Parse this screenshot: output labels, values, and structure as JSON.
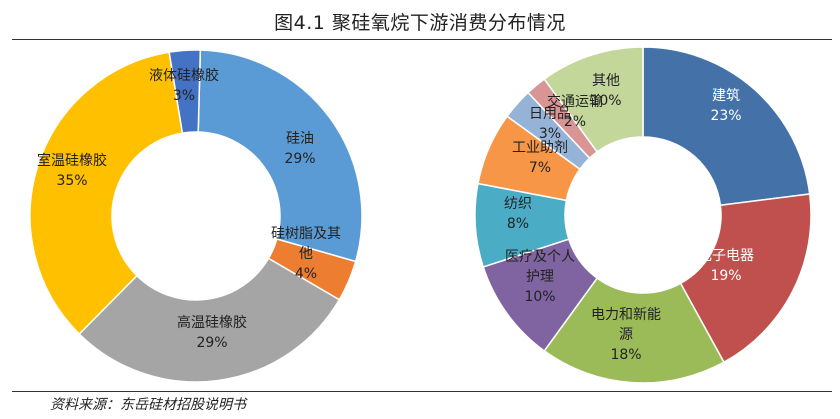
{
  "title": "图4.1 聚硅氧烷下游消费分布情况",
  "source": "资料来源：东岳硅材招股说明书",
  "chart_data": [
    {
      "type": "pie",
      "donut": true,
      "slices": [
        {
          "label": "硅油",
          "value": 29,
          "value_label": "29%",
          "color": "#5B9BD5"
        },
        {
          "label": "硅树脂及其他",
          "label_lines": [
            "硅树脂及其",
            "他"
          ],
          "value": 4,
          "value_label": "4%",
          "color": "#ED7D31"
        },
        {
          "label": "高温硅橡胶",
          "value": 29,
          "value_label": "29%",
          "color": "#A5A5A5"
        },
        {
          "label": "室温硅橡胶",
          "value": 35,
          "value_label": "35%",
          "color": "#FFC000"
        },
        {
          "label": "液体硅橡胶",
          "value": 3,
          "value_label": "3%",
          "color": "#4472C4"
        }
      ]
    },
    {
      "type": "pie",
      "donut": true,
      "slices": [
        {
          "label": "建筑",
          "value": 23,
          "value_label": "23%",
          "color": "#4472A8"
        },
        {
          "label": "电子电器",
          "value": 19,
          "value_label": "19%",
          "color": "#C0504D"
        },
        {
          "label": "电力和新能源",
          "label_lines": [
            "电力和新能",
            "源"
          ],
          "value": 18,
          "value_label": "18%",
          "color": "#9BBB59"
        },
        {
          "label": "医疗及个人护理",
          "label_lines": [
            "医疗及个人",
            "护理"
          ],
          "value": 10,
          "value_label": "10%",
          "color": "#8064A2"
        },
        {
          "label": "纺织",
          "value": 8,
          "value_label": "8%",
          "color": "#4BACC6"
        },
        {
          "label": "工业助剂",
          "value": 7,
          "value_label": "7%",
          "color": "#F79646"
        },
        {
          "label": "日用品",
          "value": 3,
          "value_label": "3%",
          "color": "#95B3D7"
        },
        {
          "label": "交通运输",
          "value": 2,
          "value_label": "2%",
          "color": "#D99594"
        },
        {
          "label": "其他",
          "value": 10,
          "value_label": "10%",
          "color": "#C4D79B"
        }
      ]
    }
  ]
}
